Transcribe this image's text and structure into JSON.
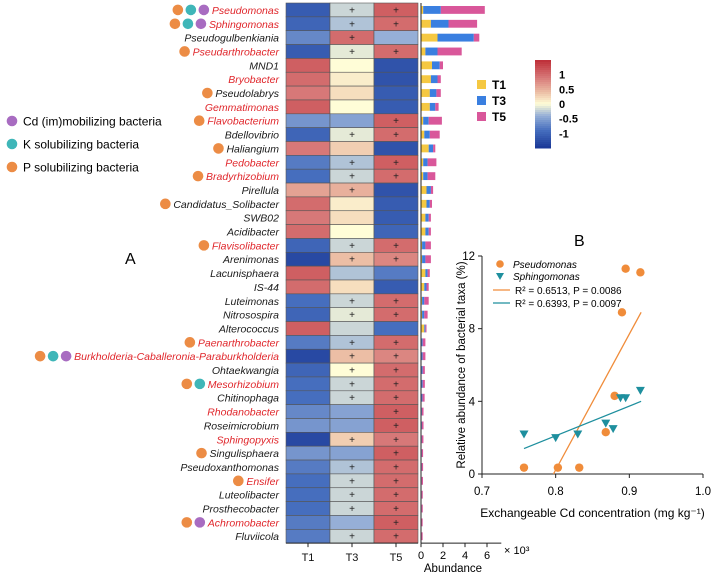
{
  "colors": {
    "T1": "#f5c842",
    "T3": "#3a7fe0",
    "T5": "#d9579a",
    "cd_dot": "#a86cc1",
    "k_dot": "#3fb6b8",
    "p_dot": "#ec8c45",
    "red_label": "#e0262b",
    "black_label": "#1a1a1a",
    "line_pseudomonas": "#f08c3a",
    "line_sphingomonas": "#1e8f9e"
  },
  "legend_dots": [
    {
      "label": "Cd (im)mobilizing bacteria",
      "color": "cd_dot"
    },
    {
      "label": "K solubilizing bacteria",
      "color": "k_dot"
    },
    {
      "label": "P solubilizing bacteria",
      "color": "p_dot"
    }
  ],
  "panel_labels": {
    "a": "A",
    "b": "B"
  },
  "chart_data": [
    {
      "type": "heatmap",
      "columns": [
        "T1",
        "T3",
        "T5"
      ],
      "colorbar": {
        "min": -1.5,
        "max": 1.5,
        "ticks": [
          1,
          0.5,
          0,
          -0.5,
          -1
        ],
        "tick_labels": [
          "1",
          "0.5",
          "0",
          "-0.5",
          "-1"
        ]
      },
      "significance_symbol": "+",
      "rows": [
        {
          "taxon": "Pseudomonas",
          "red": true,
          "dots": [
            "p",
            "k",
            "cd"
          ],
          "z": [
            -1.1,
            -0.2,
            1.1
          ],
          "sig": [
            false,
            true,
            true
          ]
        },
        {
          "taxon": "Sphingomonas",
          "red": true,
          "dots": [
            "p",
            "k",
            "cd"
          ],
          "z": [
            -1.0,
            -0.3,
            1.0
          ],
          "sig": [
            false,
            true,
            true
          ]
        },
        {
          "taxon": "Pseudogulbenkiania",
          "red": false,
          "dots": [],
          "z": [
            -0.7,
            1.0,
            -0.4
          ],
          "sig": [
            false,
            true,
            false
          ]
        },
        {
          "taxon": "Pseudarthrobacter",
          "red": true,
          "dots": [
            "p"
          ],
          "z": [
            -1.1,
            -0.1,
            1.0
          ],
          "sig": [
            false,
            true,
            true
          ]
        },
        {
          "taxon": "MND1",
          "red": false,
          "dots": [],
          "z": [
            1.1,
            0.0,
            -1.2
          ],
          "sig": [
            false,
            false,
            false
          ]
        },
        {
          "taxon": "Bryobacter",
          "red": true,
          "dots": [],
          "z": [
            1.0,
            0.1,
            -1.2
          ],
          "sig": [
            false,
            false,
            false
          ]
        },
        {
          "taxon": "Pseudolabrys",
          "red": false,
          "dots": [
            "p"
          ],
          "z": [
            0.9,
            0.2,
            -1.1
          ],
          "sig": [
            false,
            false,
            false
          ]
        },
        {
          "taxon": "Gemmatimonas",
          "red": true,
          "dots": [],
          "z": [
            1.1,
            0.0,
            -1.1
          ],
          "sig": [
            false,
            false,
            false
          ]
        },
        {
          "taxon": "Flavobacterium",
          "red": true,
          "dots": [
            "p"
          ],
          "z": [
            -0.6,
            -0.5,
            1.1
          ],
          "sig": [
            false,
            false,
            true
          ]
        },
        {
          "taxon": "Bdellovibrio",
          "red": false,
          "dots": [],
          "z": [
            -1.0,
            -0.1,
            1.0
          ],
          "sig": [
            false,
            true,
            true
          ]
        },
        {
          "taxon": "Haliangium",
          "red": false,
          "dots": [
            "p"
          ],
          "z": [
            0.9,
            0.3,
            -1.2
          ],
          "sig": [
            false,
            false,
            false
          ]
        },
        {
          "taxon": "Pedobacter",
          "red": true,
          "dots": [],
          "z": [
            -0.8,
            -0.3,
            1.1
          ],
          "sig": [
            false,
            true,
            true
          ]
        },
        {
          "taxon": "Bradyrhizobium",
          "red": true,
          "dots": [
            "p"
          ],
          "z": [
            -0.9,
            -0.2,
            1.0
          ],
          "sig": [
            false,
            true,
            true
          ]
        },
        {
          "taxon": "Pirellula",
          "red": false,
          "dots": [],
          "z": [
            0.6,
            0.5,
            -1.2
          ],
          "sig": [
            false,
            true,
            false
          ]
        },
        {
          "taxon": "Candidatus_Solibacter",
          "red": false,
          "dots": [
            "p"
          ],
          "z": [
            1.0,
            0.1,
            -1.1
          ],
          "sig": [
            false,
            false,
            false
          ]
        },
        {
          "taxon": "SWB02",
          "red": false,
          "dots": [],
          "z": [
            0.9,
            0.2,
            -1.1
          ],
          "sig": [
            false,
            false,
            false
          ]
        },
        {
          "taxon": "Acidibacter",
          "red": false,
          "dots": [],
          "z": [
            1.0,
            0.0,
            -1.0
          ],
          "sig": [
            false,
            false,
            false
          ]
        },
        {
          "taxon": "Flavisolibacter",
          "red": true,
          "dots": [
            "p"
          ],
          "z": [
            -1.0,
            -0.2,
            1.0
          ],
          "sig": [
            false,
            true,
            true
          ]
        },
        {
          "taxon": "Arenimonas",
          "red": false,
          "dots": [],
          "z": [
            -1.3,
            0.4,
            0.8
          ],
          "sig": [
            false,
            true,
            true
          ]
        },
        {
          "taxon": "Lacunisphaera",
          "red": false,
          "dots": [],
          "z": [
            1.1,
            -0.3,
            -0.8
          ],
          "sig": [
            false,
            false,
            false
          ]
        },
        {
          "taxon": "IS-44",
          "red": false,
          "dots": [],
          "z": [
            1.0,
            0.2,
            -1.1
          ],
          "sig": [
            false,
            false,
            false
          ]
        },
        {
          "taxon": "Luteimonas",
          "red": false,
          "dots": [],
          "z": [
            -0.9,
            -0.2,
            1.0
          ],
          "sig": [
            false,
            true,
            true
          ]
        },
        {
          "taxon": "Nitrosospira",
          "red": false,
          "dots": [],
          "z": [
            -1.0,
            -0.1,
            1.0
          ],
          "sig": [
            false,
            true,
            true
          ]
        },
        {
          "taxon": "Alterococcus",
          "red": false,
          "dots": [],
          "z": [
            1.1,
            -0.2,
            -0.9
          ],
          "sig": [
            false,
            false,
            false
          ]
        },
        {
          "taxon": "Paenarthrobacter",
          "red": true,
          "dots": [
            "p"
          ],
          "z": [
            -0.8,
            -0.3,
            1.0
          ],
          "sig": [
            false,
            true,
            true
          ]
        },
        {
          "taxon": "Burkholderia-Caballeronia-Paraburkholderia",
          "red": true,
          "dots": [
            "p",
            "k",
            "cd"
          ],
          "z": [
            -1.3,
            0.4,
            0.8
          ],
          "sig": [
            false,
            true,
            true
          ]
        },
        {
          "taxon": "Ohtaekwangia",
          "red": false,
          "dots": [],
          "z": [
            -1.0,
            0.0,
            1.0
          ],
          "sig": [
            false,
            true,
            true
          ]
        },
        {
          "taxon": "Mesorhizobium",
          "red": true,
          "dots": [
            "p",
            "k"
          ],
          "z": [
            -0.9,
            -0.2,
            1.0
          ],
          "sig": [
            false,
            true,
            true
          ]
        },
        {
          "taxon": "Chitinophaga",
          "red": false,
          "dots": [],
          "z": [
            -0.9,
            -0.2,
            1.0
          ],
          "sig": [
            false,
            true,
            true
          ]
        },
        {
          "taxon": "Rhodanobacter",
          "red": true,
          "dots": [],
          "z": [
            -0.7,
            -0.5,
            1.1
          ],
          "sig": [
            false,
            false,
            true
          ]
        },
        {
          "taxon": "Roseimicrobium",
          "red": false,
          "dots": [],
          "z": [
            -0.6,
            -0.5,
            1.1
          ],
          "sig": [
            false,
            false,
            true
          ]
        },
        {
          "taxon": "Sphingopyxis",
          "red": true,
          "dots": [],
          "z": [
            -1.3,
            0.3,
            0.9
          ],
          "sig": [
            false,
            true,
            true
          ]
        },
        {
          "taxon": "Singulisphaera",
          "red": false,
          "dots": [
            "p"
          ],
          "z": [
            -0.6,
            -0.5,
            1.1
          ],
          "sig": [
            false,
            false,
            true
          ]
        },
        {
          "taxon": "Pseudoxanthomonas",
          "red": false,
          "dots": [],
          "z": [
            -0.8,
            -0.3,
            1.0
          ],
          "sig": [
            false,
            true,
            true
          ]
        },
        {
          "taxon": "Ensifer",
          "red": true,
          "dots": [
            "p"
          ],
          "z": [
            -0.9,
            -0.2,
            1.0
          ],
          "sig": [
            false,
            true,
            true
          ]
        },
        {
          "taxon": "Luteolibacter",
          "red": false,
          "dots": [],
          "z": [
            -0.9,
            -0.2,
            1.0
          ],
          "sig": [
            false,
            true,
            true
          ]
        },
        {
          "taxon": "Prosthecobacter",
          "red": false,
          "dots": [],
          "z": [
            -0.9,
            -0.2,
            1.0
          ],
          "sig": [
            false,
            true,
            true
          ]
        },
        {
          "taxon": "Achromobacter",
          "red": true,
          "dots": [
            "p",
            "cd"
          ],
          "z": [
            -0.8,
            -0.4,
            1.1
          ],
          "sig": [
            false,
            false,
            true
          ]
        },
        {
          "taxon": "Fluviicola",
          "red": false,
          "dots": [],
          "z": [
            -0.8,
            -0.2,
            1.0
          ],
          "sig": [
            false,
            true,
            true
          ]
        }
      ]
    },
    {
      "type": "bar",
      "stacked": true,
      "orientation": "horizontal",
      "series_names": [
        "T1",
        "T3",
        "T5"
      ],
      "xlabel": "Abundance",
      "axis_multiplier": "× 10³",
      "xlim": [
        0,
        7
      ],
      "xticks": [
        0,
        2,
        4,
        6
      ],
      "values": [
        [
          0.2,
          1.6,
          4.0
        ],
        [
          0.9,
          1.6,
          2.6
        ],
        [
          1.5,
          3.3,
          0.5
        ],
        [
          0.4,
          1.1,
          2.2
        ],
        [
          1.0,
          0.7,
          0.3
        ],
        [
          0.9,
          0.6,
          0.3
        ],
        [
          0.8,
          0.6,
          0.4
        ],
        [
          0.8,
          0.5,
          0.3
        ],
        [
          0.2,
          0.5,
          1.2
        ],
        [
          0.3,
          0.5,
          0.9
        ],
        [
          0.7,
          0.4,
          0.2
        ],
        [
          0.2,
          0.4,
          0.8
        ],
        [
          0.2,
          0.4,
          0.7
        ],
        [
          0.5,
          0.4,
          0.2
        ],
        [
          0.5,
          0.3,
          0.2
        ],
        [
          0.4,
          0.3,
          0.2
        ],
        [
          0.4,
          0.3,
          0.2
        ],
        [
          0.1,
          0.3,
          0.5
        ],
        [
          0.1,
          0.3,
          0.5
        ],
        [
          0.4,
          0.2,
          0.2
        ],
        [
          0.3,
          0.2,
          0.2
        ],
        [
          0.1,
          0.2,
          0.4
        ],
        [
          0.1,
          0.2,
          0.3
        ],
        [
          0.3,
          0.1,
          0.1
        ],
        [
          0.05,
          0.1,
          0.25
        ],
        [
          0.05,
          0.1,
          0.25
        ],
        [
          0.05,
          0.1,
          0.2
        ],
        [
          0.05,
          0.1,
          0.2
        ],
        [
          0.05,
          0.08,
          0.2
        ],
        [
          0.03,
          0.05,
          0.15
        ],
        [
          0.03,
          0.05,
          0.15
        ],
        [
          0.02,
          0.05,
          0.15
        ],
        [
          0.02,
          0.05,
          0.12
        ],
        [
          0.02,
          0.05,
          0.12
        ],
        [
          0.02,
          0.04,
          0.12
        ],
        [
          0.02,
          0.04,
          0.1
        ],
        [
          0.02,
          0.04,
          0.1
        ],
        [
          0.02,
          0.03,
          0.1
        ],
        [
          0.02,
          0.03,
          0.1
        ]
      ]
    },
    {
      "type": "scatter",
      "xlabel": "Exchangeable Cd concentration (mg kg⁻¹)",
      "ylabel": "Relative abundance of bacterial taxa (%)",
      "xlim": [
        0.7,
        1.0
      ],
      "ylim": [
        0,
        12
      ],
      "xticks": [
        0.7,
        0.8,
        0.9,
        1.0
      ],
      "xtick_labels": [
        "0.7",
        "0.8",
        "0.9",
        "1.0"
      ],
      "yticks": [
        0,
        4,
        8,
        12
      ],
      "ytick_labels": [
        "0",
        "4",
        "8",
        "12"
      ],
      "series": [
        {
          "name": "Pseudomonas",
          "marker": "circle",
          "color": "line_pseudomonas",
          "stats": "R² = 0.6513, P = 0.0086",
          "points": [
            [
              0.757,
              0.35
            ],
            [
              0.803,
              0.35
            ],
            [
              0.832,
              0.35
            ],
            [
              0.868,
              2.3
            ],
            [
              0.88,
              4.3
            ],
            [
              0.89,
              8.9
            ],
            [
              0.895,
              11.3
            ],
            [
              0.915,
              11.1
            ]
          ],
          "fit": [
            [
              0.797,
              0.0
            ],
            [
              0.916,
              8.9
            ]
          ]
        },
        {
          "name": "Sphingomonas",
          "marker": "triangle-down",
          "color": "line_sphingomonas",
          "stats": "R² = 0.6393, P = 0.0097",
          "points": [
            [
              0.757,
              2.2
            ],
            [
              0.8,
              2.0
            ],
            [
              0.83,
              2.2
            ],
            [
              0.868,
              2.8
            ],
            [
              0.878,
              2.5
            ],
            [
              0.888,
              4.2
            ],
            [
              0.895,
              4.2
            ],
            [
              0.915,
              4.6
            ]
          ],
          "fit": [
            [
              0.757,
              1.4
            ],
            [
              0.916,
              4.0
            ]
          ]
        }
      ]
    }
  ]
}
